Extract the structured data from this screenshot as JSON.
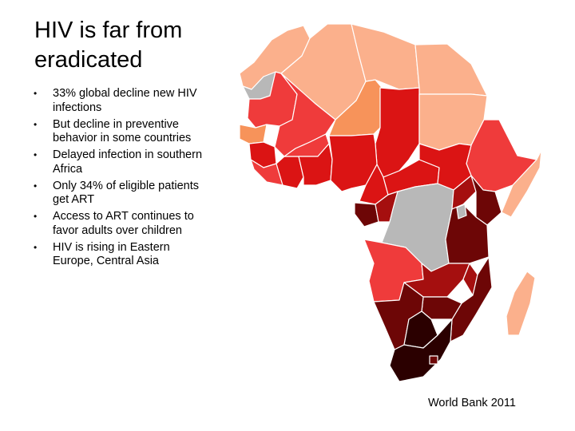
{
  "slide": {
    "title": "HIV is far from eradicated",
    "bullets": [
      "33% global decline new HIV infections",
      "But decline in preventive behavior in some countries",
      "Delayed infection in southern Africa",
      "Only 34% of eligible patients get ART",
      "Access to ART continues to favor adults over children",
      "HIV is rising in Eastern Europe, Central Asia"
    ],
    "bullet_glyph": "•",
    "source": "World Bank 2011"
  },
  "map": {
    "colors": {
      "lowest": "#fbb08c",
      "low": "#f7935a",
      "medium": "#ef3b3b",
      "high": "#db1414",
      "higher": "#a50f0f",
      "very_high": "#6d0606",
      "highest": "#2b0000",
      "no_data": "#b8b8b8"
    }
  }
}
